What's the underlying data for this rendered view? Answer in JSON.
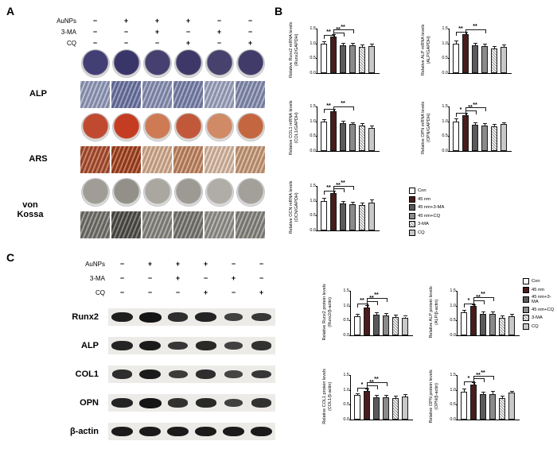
{
  "figure": {
    "panel_a_label": "A",
    "panel_b_label": "B",
    "panel_c_label": "C"
  },
  "panel_a": {
    "conditions": {
      "rows": [
        {
          "label": "AuNPs",
          "signs": [
            "−",
            "+",
            "+",
            "+",
            "−",
            "−"
          ]
        },
        {
          "label": "3-MA",
          "signs": [
            "−",
            "−",
            "+",
            "−",
            "+",
            "−"
          ]
        },
        {
          "label": "CQ",
          "signs": [
            "−",
            "−",
            "−",
            "+",
            "−",
            "+"
          ]
        }
      ]
    },
    "rows": [
      {
        "label": "ALP",
        "dish_colors": [
          "#433e73",
          "#3a3569",
          "#45406f",
          "#3d3867",
          "#46416d",
          "#403b69"
        ],
        "micro_colors": [
          "#9aa2c2",
          "#6f77a8",
          "#8f97bb",
          "#7d85b0",
          "#a6adc9",
          "#8a92b6"
        ]
      },
      {
        "label": "ARS",
        "dish_colors": [
          "#bf4a30",
          "#c43d22",
          "#cd7a55",
          "#c2583a",
          "#d08a66",
          "#c4663f"
        ],
        "micro_colors": [
          "#b2502f",
          "#a8431e",
          "#dcb596",
          "#c88a64",
          "#e2c3ab",
          "#cfa07c"
        ]
      },
      {
        "label": "von Kossa",
        "dish_colors": [
          "#a09d97",
          "#93908a",
          "#aaa7a1",
          "#9d9a94",
          "#b0ada7",
          "#a3a09a"
        ],
        "micro_colors": [
          "#77756f",
          "#504e48",
          "#8d8b85",
          "#7b7973",
          "#9b9993",
          "#8b8983"
        ]
      }
    ]
  },
  "panel_c": {
    "conditions": {
      "rows": [
        {
          "label": "AuNPs",
          "signs": [
            "−",
            "+",
            "+",
            "+",
            "−",
            "−"
          ]
        },
        {
          "label": "3-MA",
          "signs": [
            "−",
            "−",
            "+",
            "−",
            "+",
            "−"
          ]
        },
        {
          "label": "CQ",
          "signs": [
            "−",
            "−",
            "−",
            "+",
            "−",
            "+"
          ]
        }
      ]
    },
    "blots": [
      {
        "label": "Runx2",
        "intensities": [
          0.9,
          1.0,
          0.75,
          0.85,
          0.55,
          0.65
        ]
      },
      {
        "label": "ALP",
        "intensities": [
          0.85,
          0.95,
          0.65,
          0.8,
          0.55,
          0.7
        ]
      },
      {
        "label": "COL1",
        "intensities": [
          0.75,
          0.95,
          0.6,
          0.75,
          0.5,
          0.65
        ]
      },
      {
        "label": "OPN",
        "intensities": [
          0.85,
          1.0,
          0.7,
          0.8,
          0.55,
          0.7
        ]
      },
      {
        "label": "β-actin",
        "intensities": [
          0.95,
          0.95,
          0.95,
          0.95,
          0.95,
          0.95
        ]
      }
    ]
  },
  "legend": {
    "items": [
      {
        "label": "Con",
        "color": "#ffffff",
        "hatch": false
      },
      {
        "label": "45 nm",
        "color": "#4a1c1c",
        "hatch": false
      },
      {
        "label": "45 nm+3-MA",
        "color": "#5a5a5a",
        "hatch": false
      },
      {
        "label": "45 nm+CQ",
        "color": "#8a8a8a",
        "hatch": false
      },
      {
        "label": "3-MA",
        "color": "#ffffff",
        "hatch": true
      },
      {
        "label": "CQ",
        "color": "#c8c8c8",
        "hatch": false
      }
    ]
  },
  "chart_data": [
    {
      "type": "bar",
      "id": "runx2-mrna",
      "ylabel": "Relative Runx2 mRNA levels",
      "ylabel2": "(Runx2/GAPDH)",
      "categories": [
        "Con",
        "45 nm",
        "45 nm+3-MA",
        "45 nm+CQ",
        "3-MA",
        "CQ"
      ],
      "values": [
        1.0,
        1.22,
        0.93,
        0.95,
        0.88,
        0.92
      ],
      "errors": [
        0.05,
        0.07,
        0.05,
        0.05,
        0.06,
        0.05
      ],
      "ylim": [
        0,
        1.5
      ],
      "yticks": [
        0,
        0.5,
        1,
        1.5
      ],
      "sig": [
        {
          "from": 0,
          "to": 1,
          "y": 1.28,
          "label": "**"
        },
        {
          "from": 1,
          "to": 2,
          "y": 1.37,
          "label": "**"
        },
        {
          "from": 1,
          "to": 3,
          "y": 1.46,
          "label": "**"
        }
      ]
    },
    {
      "type": "bar",
      "id": "alp-mrna",
      "ylabel": "Relative ALP mRNA levels",
      "ylabel2": "(ALP/GAPDH)",
      "categories": [
        "Con",
        "45 nm",
        "45 nm+3-MA",
        "45 nm+CQ",
        "3-MA",
        "CQ"
      ],
      "values": [
        1.0,
        1.3,
        0.95,
        0.92,
        0.82,
        0.88
      ],
      "errors": [
        0.06,
        0.06,
        0.05,
        0.05,
        0.07,
        0.06
      ],
      "ylim": [
        0,
        1.5
      ],
      "yticks": [
        0,
        0.5,
        1,
        1.5
      ],
      "sig": [
        {
          "from": 0,
          "to": 1,
          "y": 1.4,
          "label": "**"
        },
        {
          "from": 1,
          "to": 3,
          "y": 1.48,
          "label": "**"
        }
      ]
    },
    {
      "type": "bar",
      "id": "col1-mrna",
      "ylabel": "Relative COL1 mRNA levels",
      "ylabel2": "(COL1/GAPDH)",
      "categories": [
        "Con",
        "45 nm",
        "45 nm+3-MA",
        "45 nm+CQ",
        "3-MA",
        "CQ"
      ],
      "values": [
        1.0,
        1.35,
        0.95,
        0.9,
        0.85,
        0.78
      ],
      "errors": [
        0.05,
        0.05,
        0.05,
        0.05,
        0.05,
        0.04
      ],
      "ylim": [
        0,
        1.5
      ],
      "yticks": [
        0,
        0.5,
        1,
        1.5
      ],
      "sig": [
        {
          "from": 0,
          "to": 1,
          "y": 1.42,
          "label": "**"
        },
        {
          "from": 1,
          "to": 3,
          "y": 1.49,
          "label": "**"
        }
      ]
    },
    {
      "type": "bar",
      "id": "opn-mrna",
      "ylabel": "Relative OPN mRNA levels",
      "ylabel2": "(OPN/GAPDH)",
      "categories": [
        "Con",
        "45 nm",
        "45 nm+3-MA",
        "45 nm+CQ",
        "3-MA",
        "CQ"
      ],
      "values": [
        1.0,
        1.2,
        0.88,
        0.86,
        0.84,
        0.9
      ],
      "errors": [
        0.06,
        0.05,
        0.05,
        0.05,
        0.05,
        0.05
      ],
      "ylim": [
        0,
        1.5
      ],
      "yticks": [
        0,
        0.5,
        1,
        1.5
      ],
      "sig": [
        {
          "from": 0,
          "to": 1,
          "y": 1.28,
          "label": "*"
        },
        {
          "from": 1,
          "to": 2,
          "y": 1.37,
          "label": "**"
        },
        {
          "from": 1,
          "to": 3,
          "y": 1.46,
          "label": "**"
        }
      ]
    },
    {
      "type": "bar",
      "id": "ocn-mrna",
      "ylabel": "Relative OCN mRNA levels",
      "ylabel2": "(OCN/GAPDH)",
      "categories": [
        "Con",
        "45 nm",
        "45 nm+3-MA",
        "45 nm+CQ",
        "3-MA",
        "CQ"
      ],
      "values": [
        1.0,
        1.25,
        0.92,
        0.88,
        0.85,
        0.95
      ],
      "errors": [
        0.06,
        0.06,
        0.05,
        0.05,
        0.05,
        0.06
      ],
      "ylim": [
        0,
        1.5
      ],
      "yticks": [
        0,
        0.5,
        1,
        1.5
      ],
      "sig": [
        {
          "from": 0,
          "to": 1,
          "y": 1.33,
          "label": "**"
        },
        {
          "from": 1,
          "to": 2,
          "y": 1.41,
          "label": "**"
        },
        {
          "from": 1,
          "to": 3,
          "y": 1.49,
          "label": "**"
        }
      ]
    },
    {
      "type": "bar",
      "id": "runx2-protein",
      "ylabel": "Relative Runx2 protein levels",
      "ylabel2": "(Runx2/β-actin)",
      "categories": [
        "Con",
        "45 nm",
        "45 nm+3-MA",
        "45 nm+CQ",
        "3-MA",
        "CQ"
      ],
      "values": [
        0.65,
        0.95,
        0.7,
        0.68,
        0.62,
        0.58
      ],
      "errors": [
        0.05,
        0.05,
        0.05,
        0.05,
        0.05,
        0.05
      ],
      "ylim": [
        0,
        1.5
      ],
      "yticks": [
        0,
        0.5,
        1,
        1.5
      ],
      "sig": [
        {
          "from": 0,
          "to": 1,
          "y": 1.06,
          "label": "**"
        },
        {
          "from": 1,
          "to": 2,
          "y": 1.16,
          "label": "**"
        },
        {
          "from": 1,
          "to": 3,
          "y": 1.26,
          "label": "**"
        }
      ]
    },
    {
      "type": "bar",
      "id": "alp-protein",
      "ylabel": "Relative ALP protein levels",
      "ylabel2": "(ALP/β-actin)",
      "categories": [
        "Con",
        "45 nm",
        "45 nm+3-MA",
        "45 nm+CQ",
        "3-MA",
        "CQ"
      ],
      "values": [
        0.78,
        0.98,
        0.72,
        0.73,
        0.58,
        0.65
      ],
      "errors": [
        0.05,
        0.04,
        0.05,
        0.05,
        0.06,
        0.05
      ],
      "ylim": [
        0,
        1.5
      ],
      "yticks": [
        0,
        0.5,
        1,
        1.5
      ],
      "sig": [
        {
          "from": 0,
          "to": 1,
          "y": 1.08,
          "label": "*"
        },
        {
          "from": 1,
          "to": 2,
          "y": 1.18,
          "label": "**"
        },
        {
          "from": 1,
          "to": 3,
          "y": 1.28,
          "label": "**"
        }
      ]
    },
    {
      "type": "bar",
      "id": "col1-protein",
      "ylabel": "Relative COL1 protein levels",
      "ylabel2": "(COL1/β-actin)",
      "categories": [
        "Con",
        "45 nm",
        "45 nm+3-MA",
        "45 nm+CQ",
        "3-MA",
        "CQ"
      ],
      "values": [
        0.82,
        0.97,
        0.76,
        0.76,
        0.72,
        0.79
      ],
      "errors": [
        0.05,
        0.05,
        0.04,
        0.05,
        0.05,
        0.05
      ],
      "ylim": [
        0,
        1.5
      ],
      "yticks": [
        0,
        0.5,
        1,
        1.5
      ],
      "sig": [
        {
          "from": 0,
          "to": 1,
          "y": 1.06,
          "label": "*"
        },
        {
          "from": 1,
          "to": 2,
          "y": 1.16,
          "label": "**"
        },
        {
          "from": 1,
          "to": 3,
          "y": 1.26,
          "label": "**"
        }
      ]
    },
    {
      "type": "bar",
      "id": "opn-protein",
      "ylabel": "Relative OPN protein levels",
      "ylabel2": "(OPN/β-actin)",
      "categories": [
        "Con",
        "45 nm",
        "45 nm+3-MA",
        "45 nm+CQ",
        "3-MA",
        "CQ"
      ],
      "values": [
        0.95,
        1.18,
        0.85,
        0.87,
        0.72,
        0.9
      ],
      "errors": [
        0.06,
        0.05,
        0.05,
        0.06,
        0.07,
        0.05
      ],
      "ylim": [
        0,
        1.5
      ],
      "yticks": [
        0,
        0.5,
        1,
        1.5
      ],
      "sig": [
        {
          "from": 0,
          "to": 1,
          "y": 1.28,
          "label": "*"
        },
        {
          "from": 1,
          "to": 2,
          "y": 1.38,
          "label": "**"
        },
        {
          "from": 1,
          "to": 3,
          "y": 1.47,
          "label": "**"
        }
      ]
    }
  ]
}
